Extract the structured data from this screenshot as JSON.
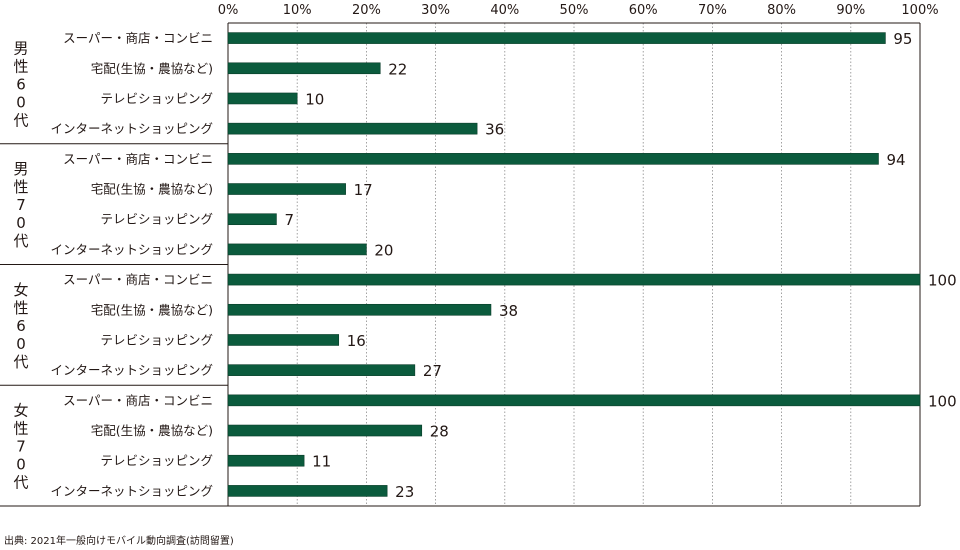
{
  "chart_data": {
    "type": "bar",
    "orientation": "horizontal",
    "xlim": [
      0,
      100
    ],
    "ticks": [
      "0%",
      "10%",
      "20%",
      "30%",
      "40%",
      "50%",
      "60%",
      "70%",
      "80%",
      "90%",
      "100%"
    ],
    "grid": true,
    "bar_color": "#0b5b3d",
    "groups": [
      {
        "label": "男性60代",
        "label_chars": [
          "男",
          "性",
          "6",
          "0",
          "代"
        ],
        "categories": [
          "スーパー・商店・コンビニ",
          "宅配(生協・農協など)",
          "テレビショッピング",
          "インターネットショッピング"
        ],
        "values": [
          95,
          22,
          10,
          36
        ]
      },
      {
        "label": "男性70代",
        "label_chars": [
          "男",
          "性",
          "7",
          "0",
          "代"
        ],
        "categories": [
          "スーパー・商店・コンビニ",
          "宅配(生協・農協など)",
          "テレビショッピング",
          "インターネットショッピング"
        ],
        "values": [
          94,
          17,
          7,
          20
        ]
      },
      {
        "label": "女性60代",
        "label_chars": [
          "女",
          "性",
          "6",
          "0",
          "代"
        ],
        "categories": [
          "スーパー・商店・コンビニ",
          "宅配(生協・農協など)",
          "テレビショッピング",
          "インターネットショッピング"
        ],
        "values": [
          100,
          38,
          16,
          27
        ]
      },
      {
        "label": "女性70代",
        "label_chars": [
          "女",
          "性",
          "7",
          "0",
          "代"
        ],
        "categories": [
          "スーパー・商店・コンビニ",
          "宅配(生協・農協など)",
          "テレビショッピング",
          "インターネットショッピング"
        ],
        "values": [
          100,
          28,
          11,
          23
        ]
      }
    ]
  },
  "source": "出典: 2021年一般向けモバイル動向調査(訪問留置)"
}
